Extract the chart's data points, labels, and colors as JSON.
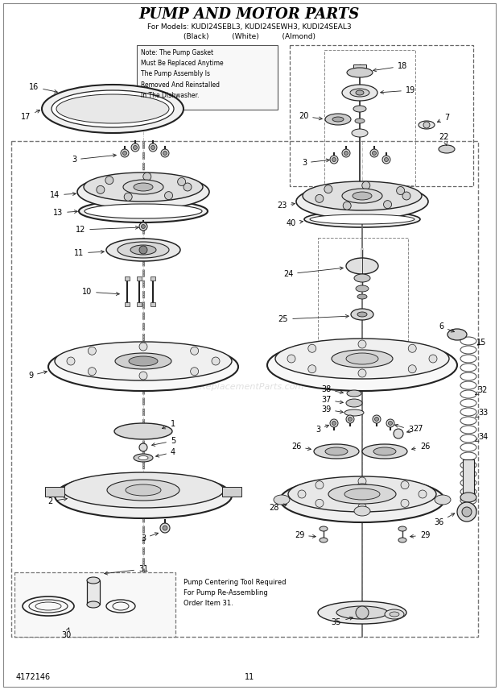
{
  "title": "PUMP AND MOTOR PARTS",
  "subtitle_line1": "For Models: KUDI24SEBL3, KUDI24SEWH3, KUDI24SEAL3",
  "subtitle_line2": "(Black)          (White)          (Almond)",
  "bg_color": "#ffffff",
  "lc": "#222222",
  "tc": "#000000",
  "watermark": "eReplacementParts.com",
  "page_num": "11",
  "doc_num": "4172146",
  "note_text": "Note: The Pump Gasket\nMust Be Replaced Anytime\nThe Pump Assembly Is\nRemoved And Reinstalled\nIn The Dishwasher.",
  "pump_tool_text": "Pump Centering Tool Required\nFor Pump Re-Assembling\nOrder Item 31."
}
